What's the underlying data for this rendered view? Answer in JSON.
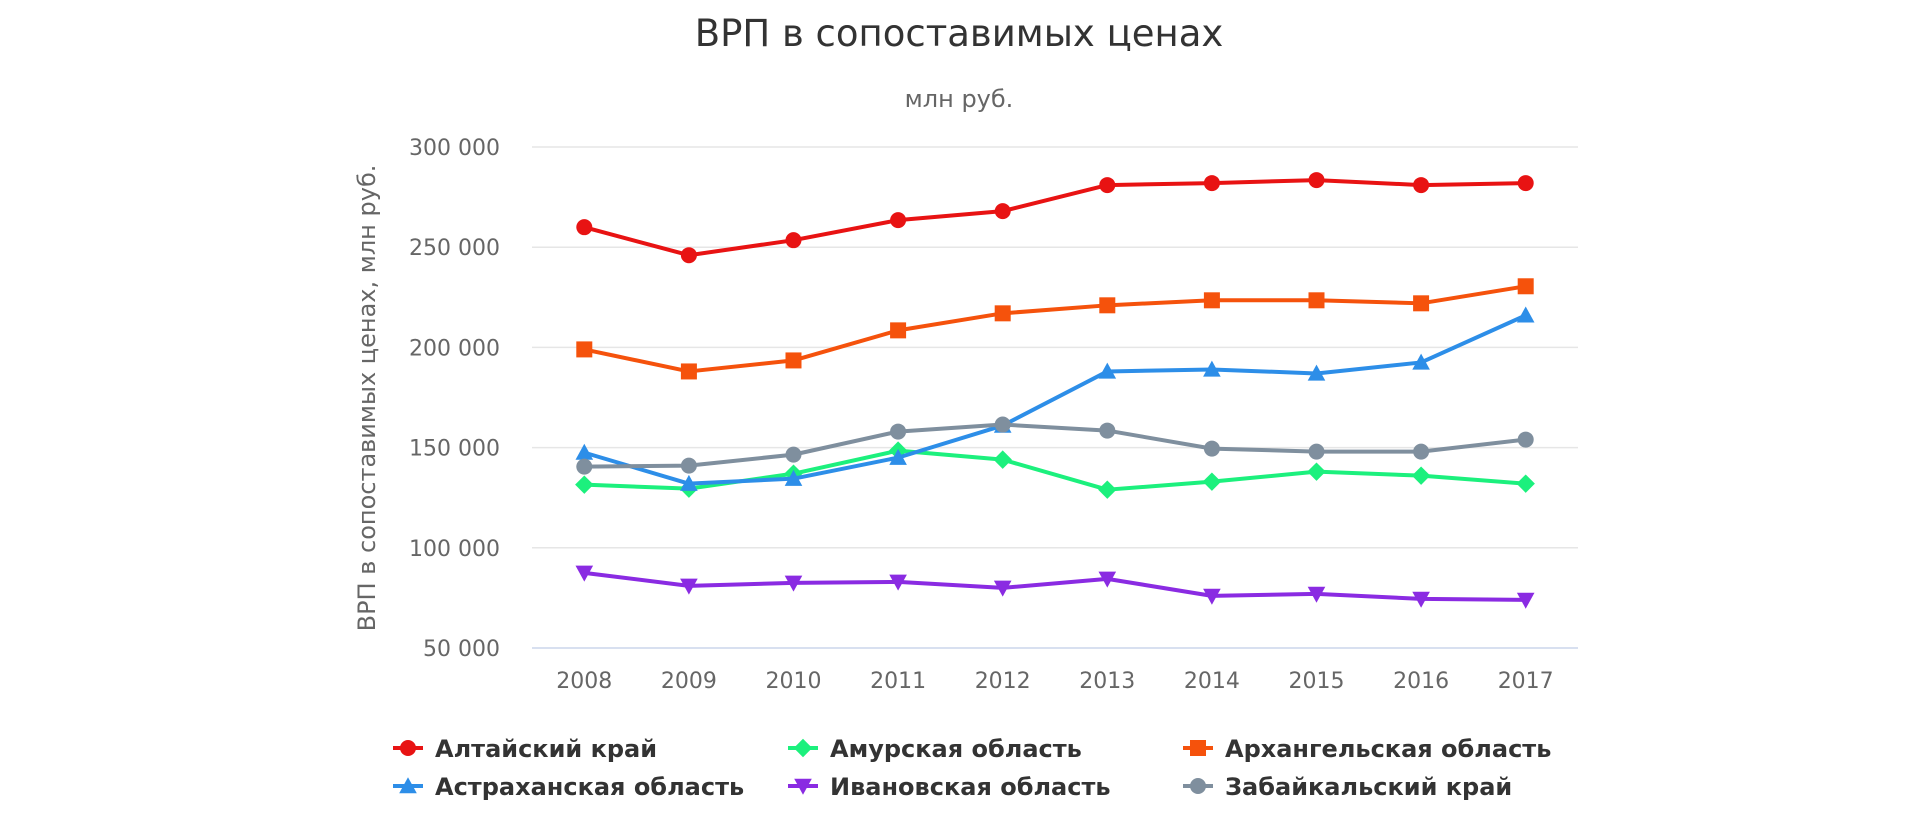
{
  "chart_data": {
    "type": "line",
    "title": "ВРП в сопоставимых ценах",
    "subtitle": "млн руб.",
    "xlabel": "",
    "ylabel": "ВРП в сопоставимых ценах, млн руб.",
    "ylim": [
      50000,
      300000
    ],
    "yticks": [
      50000,
      100000,
      150000,
      200000,
      250000,
      300000
    ],
    "ytick_labels": [
      "50 000",
      "100 000",
      "150 000",
      "200 000",
      "250 000",
      "300 000"
    ],
    "categories": [
      "2008",
      "2009",
      "2010",
      "2011",
      "2012",
      "2013",
      "2014",
      "2015",
      "2016",
      "2017"
    ],
    "grid": true,
    "legend_position": "bottom",
    "series": [
      {
        "name": "Алтайский край",
        "color": "#e81313",
        "marker": "circle",
        "values": [
          260000,
          246000,
          253500,
          263500,
          268000,
          281000,
          282000,
          283500,
          281000,
          282000
        ]
      },
      {
        "name": "Амурская область",
        "color": "#1cf07d",
        "marker": "diamond",
        "values": [
          131500,
          129500,
          137000,
          148500,
          144000,
          129000,
          133000,
          138000,
          136000,
          132000
        ]
      },
      {
        "name": "Архангельская область",
        "color": "#f5520c",
        "marker": "square",
        "values": [
          199000,
          188000,
          193500,
          208500,
          217000,
          221000,
          223500,
          223500,
          222000,
          230500
        ]
      },
      {
        "name": "Астраханская область",
        "color": "#2d8ee8",
        "marker": "triangle",
        "values": [
          147500,
          132000,
          134500,
          145000,
          161000,
          188000,
          189000,
          187000,
          192500,
          216000
        ]
      },
      {
        "name": "Ивановская область",
        "color": "#8a2be2",
        "marker": "triangle-down",
        "values": [
          87500,
          81000,
          82500,
          83000,
          80000,
          84500,
          76000,
          77000,
          74500,
          74000
        ]
      },
      {
        "name": "Забайкальский край",
        "color": "#7f8f9e",
        "marker": "circle",
        "values": [
          140500,
          141000,
          146500,
          158000,
          161500,
          158500,
          149500,
          148000,
          148000,
          154000
        ]
      }
    ]
  }
}
